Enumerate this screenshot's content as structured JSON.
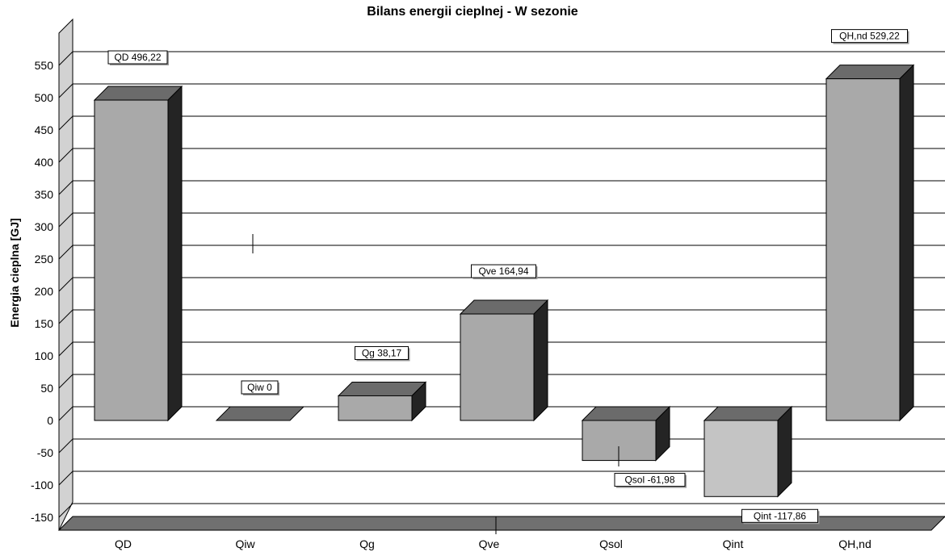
{
  "chart_data": {
    "type": "bar",
    "title": "Bilans energii cieplnej - W sezonie",
    "ylabel": "Energia cieplna [GJ]",
    "xlabel": "",
    "ylim": [
      -150,
      550
    ],
    "yticks": [
      550,
      500,
      450,
      400,
      350,
      300,
      250,
      200,
      150,
      100,
      50,
      0,
      -50,
      -100,
      -150
    ],
    "ytick_labels": [
      "550",
      "500",
      "450",
      "400",
      "350",
      "300",
      "250",
      "200",
      "150",
      "100",
      "50",
      "0",
      "-50",
      "-100",
      "-150"
    ],
    "categories": [
      "QD",
      "Qiw",
      "Qg",
      "Qve",
      "Qsol",
      "Qint",
      "QH,nd"
    ],
    "values": [
      496.22,
      0,
      38.17,
      164.94,
      -61.98,
      -117.86,
      529.22
    ],
    "data_labels": [
      "QD 496,22",
      "Qiw 0",
      "Qg 38,17",
      "Qve 164,94",
      "Qsol -61,98",
      "Qint -117,86",
      "QH,nd 529,22"
    ],
    "grid": true,
    "style": "3d",
    "colors": {
      "bar_front": "#a9a9a9",
      "bar_top": "#6b6b6b",
      "bar_side": "#242424",
      "bar_light_front": "#c4c4c4",
      "floor": "#707070",
      "wall": "#d2d2d2",
      "grid": "#000000"
    }
  }
}
